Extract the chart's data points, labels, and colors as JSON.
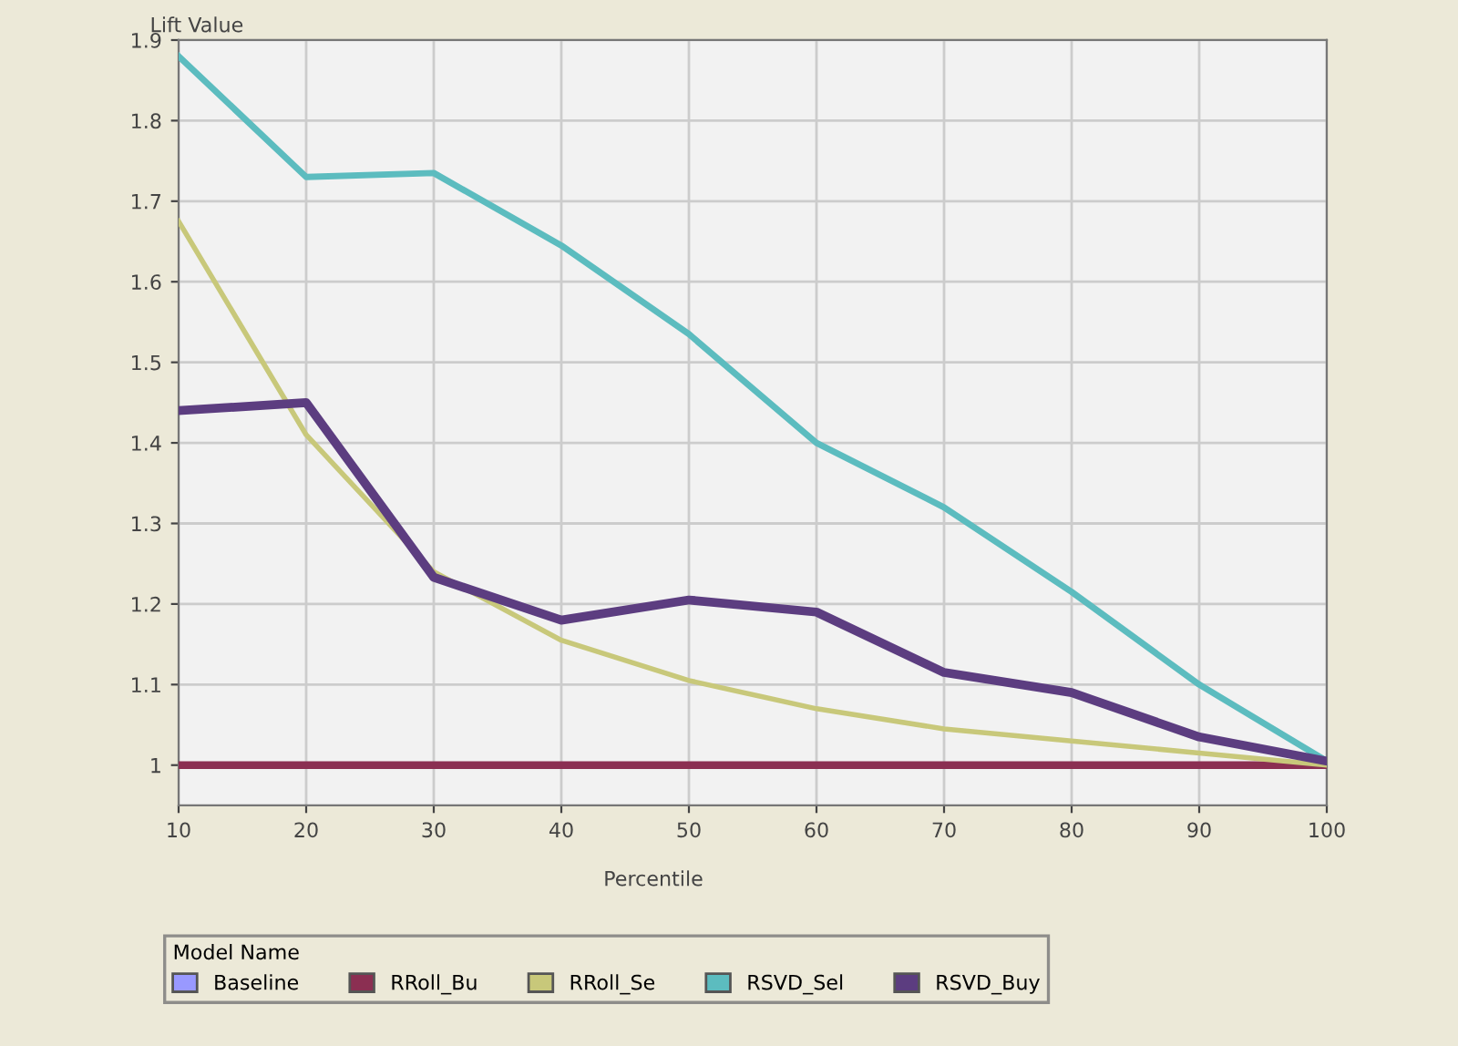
{
  "chart_data": {
    "type": "line",
    "ylabel": "Lift Value",
    "xlabel": "Percentile",
    "legend_title": "Model Name",
    "x": [
      10,
      20,
      30,
      40,
      50,
      60,
      70,
      80,
      90,
      100
    ],
    "series": [
      {
        "name": "Baseline",
        "color": "#9999ff",
        "values": [
          null,
          null,
          null,
          null,
          null,
          null,
          null,
          null,
          null,
          null
        ]
      },
      {
        "name": "RRoll_Bu",
        "color": "#8b2f52",
        "values": [
          1,
          1,
          1,
          1,
          1,
          1,
          1,
          1,
          1,
          1
        ]
      },
      {
        "name": "RRoll_Se",
        "color": "#c8c87a",
        "values": [
          1.675,
          1.41,
          1.24,
          1.155,
          1.105,
          1.07,
          1.045,
          1.03,
          1.015,
          1.0
        ]
      },
      {
        "name": "RSVD_Sel",
        "color": "#5cbcbf",
        "values": [
          1.88,
          1.73,
          1.735,
          1.645,
          1.535,
          1.4,
          1.32,
          1.215,
          1.1,
          1.005
        ]
      },
      {
        "name": "RSVD_Buy",
        "color": "#5c3d80",
        "values": [
          1.44,
          1.45,
          1.233,
          1.18,
          1.205,
          1.19,
          1.115,
          1.09,
          1.035,
          1.005
        ]
      }
    ],
    "xlim": [
      10,
      100
    ],
    "xticks": [
      10,
      20,
      30,
      40,
      50,
      60,
      70,
      80,
      90,
      100
    ],
    "ylim": [
      0.95,
      1.9
    ],
    "yticks": [
      1,
      1.1,
      1.2,
      1.3,
      1.4,
      1.5,
      1.6,
      1.7,
      1.8,
      1.9
    ],
    "grid": true,
    "legend": "bottom",
    "marker": "none",
    "line_style": "solid"
  }
}
